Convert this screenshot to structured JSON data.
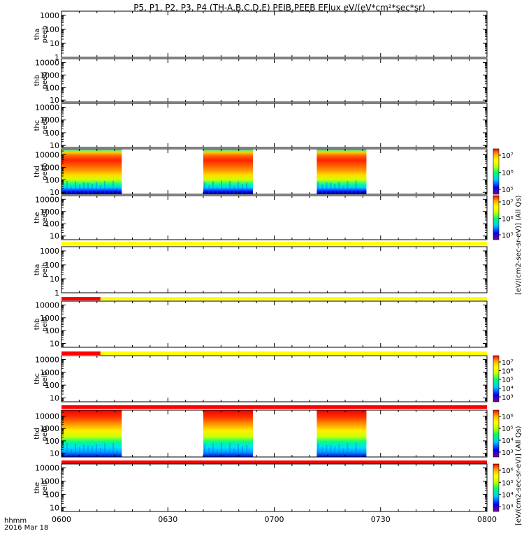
{
  "chart_data": {
    "type": "heatmap",
    "title": "P5, P1, P2, P3, P4 (TH-A,B,C,D,E) PEIB,PEEB EFlux eV/(eV*cm²*sec*sr)",
    "xlabel_line1": "hhmm",
    "xlabel_line2": "2016 Mar 18",
    "x_ticks": [
      "0600",
      "0630",
      "0700",
      "0730",
      "0800"
    ],
    "xlim": [
      "06:00",
      "08:00"
    ],
    "y_scale": "log",
    "grid": false,
    "colorbar_labels": {
      "electron": "[eV/(cm2-sec-sr-eV)] (All Qs)",
      "ion": "[eV/(cm2-sec-sr-eV)] (All Qs)"
    },
    "colorbar_ticks": {
      "electron_upper": [
        "10⁷",
        "10⁶",
        "10⁵"
      ],
      "electron_lower": [
        "10⁷",
        "10⁶",
        "10⁵"
      ],
      "ion_upper": [
        "10⁷",
        "10⁶",
        "10⁵",
        "10⁴",
        "10³"
      ],
      "ion_lower": [
        "10⁶",
        "10⁵",
        "10⁴",
        "10³"
      ],
      "ion_bottom": [
        "10⁶",
        "10⁵",
        "10⁴",
        "10³"
      ]
    },
    "panels": [
      {
        "id": "tha_peeb",
        "label_line1": "tha",
        "label_line2": "peeb",
        "y_ticks": [
          "1000",
          "100",
          "10",
          "1"
        ],
        "ylim": [
          1,
          2000
        ],
        "data": false,
        "flag_bar": null
      },
      {
        "id": "thb_peeb",
        "label_line1": "thb",
        "label_line2": "peeb",
        "y_ticks": [
          "10000",
          "1000",
          "100",
          "10"
        ],
        "ylim": [
          7,
          20000
        ],
        "data": false,
        "flag_bar": null
      },
      {
        "id": "thc_peeb",
        "label_line1": "thc",
        "label_line2": "peeb",
        "y_ticks": [
          "10000",
          "1000",
          "100",
          "10"
        ],
        "ylim": [
          7,
          20000
        ],
        "data": false,
        "flag_bar": null
      },
      {
        "id": "thd_peeb",
        "label_line1": "thd",
        "label_line2": "peeb",
        "y_ticks": [
          "10000",
          "1000",
          "100",
          "10"
        ],
        "ylim": [
          7,
          30000
        ],
        "data": true,
        "colorbar": "electron_upper",
        "intervals": [
          [
            "06:00",
            "06:17"
          ],
          [
            "06:40",
            "06:54"
          ],
          [
            "07:12",
            "07:26"
          ]
        ],
        "flag_bar": null
      },
      {
        "id": "the_peeb",
        "label_line1": "the",
        "label_line2": "peeb",
        "y_ticks": [
          "10000",
          "1000",
          "100",
          "10"
        ],
        "ylim": [
          5,
          20000
        ],
        "data": false,
        "colorbar": "electron_lower",
        "flag_bar": "yellow"
      },
      {
        "id": "tha_peib",
        "label_line1": "tha",
        "label_line2": "peib",
        "y_ticks": [
          "1000",
          "100",
          "10",
          "1"
        ],
        "ylim": [
          1,
          2000
        ],
        "data": false,
        "flag_bar": "red-yellow"
      },
      {
        "id": "thb_peib",
        "label_line1": "thb",
        "label_line2": "peib",
        "y_ticks": [
          "10000",
          "1000",
          "100",
          "10"
        ],
        "ylim": [
          5,
          20000
        ],
        "data": false,
        "flag_bar": "red-yellow"
      },
      {
        "id": "thc_peib",
        "label_line1": "thc",
        "label_line2": "peib",
        "y_ticks": [
          "10000",
          "1000",
          "100",
          "10"
        ],
        "ylim": [
          5,
          20000
        ],
        "data": false,
        "colorbar": "ion_upper",
        "flag_bar": "red"
      },
      {
        "id": "thd_peib",
        "label_line1": "thd",
        "label_line2": "peib",
        "y_ticks": [
          "10000",
          "1000",
          "100",
          "10"
        ],
        "ylim": [
          5,
          30000
        ],
        "data": true,
        "colorbar": "ion_lower",
        "intervals": [
          [
            "06:00",
            "06:17"
          ],
          [
            "06:40",
            "06:54"
          ],
          [
            "07:12",
            "07:26"
          ]
        ],
        "flag_bar": "red"
      },
      {
        "id": "the_peib",
        "label_line1": "the",
        "label_line2": "peib",
        "y_ticks": [
          "10000",
          "1000",
          "100",
          "10"
        ],
        "ylim": [
          5,
          20000
        ],
        "data": false,
        "colorbar": "ion_bottom",
        "flag_bar": null
      }
    ],
    "flag_colors": {
      "red": "#ff0000",
      "yellow": "#ffff00"
    },
    "colormap": [
      "#7f007f",
      "#0000ff",
      "#00c8ff",
      "#00ff66",
      "#ccff00",
      "#ffff00",
      "#ffaa00",
      "#ff0000"
    ]
  }
}
